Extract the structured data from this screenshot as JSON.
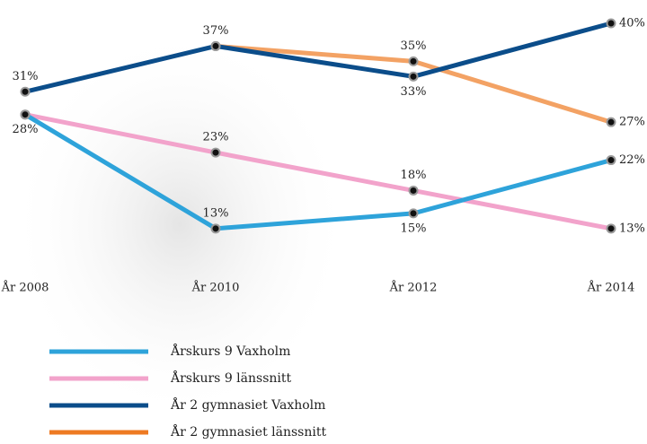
{
  "chart_data": {
    "type": "line",
    "categories": [
      "År 2008",
      "År 2010",
      "År 2012",
      "År 2014"
    ],
    "ylim": [
      0,
      40
    ],
    "series": [
      {
        "name": "Årskurs 9 Vaxholm",
        "color": "#2ea3da",
        "values": [
          28,
          13,
          15,
          22
        ],
        "value_labels": [
          "28%",
          "13%",
          "15%",
          "22%"
        ]
      },
      {
        "name": "Årskurs 9 länssnitt",
        "color": "#f2a3cb",
        "values": [
          28,
          23,
          18,
          13
        ],
        "value_labels": [
          null,
          "23%",
          "18%",
          "13%"
        ]
      },
      {
        "name": "År 2 gymnasiet Vaxholm",
        "color": "#0b4d8a",
        "values": [
          31,
          37,
          33,
          40
        ],
        "value_labels": [
          "31%",
          "37%",
          "33%",
          "40%"
        ]
      },
      {
        "name": "År 2 gymnasiet länssnitt",
        "color": "#ee7a22",
        "values": [
          null,
          37,
          35,
          27
        ],
        "value_labels": [
          null,
          null,
          "35%",
          "27%"
        ]
      }
    ]
  }
}
